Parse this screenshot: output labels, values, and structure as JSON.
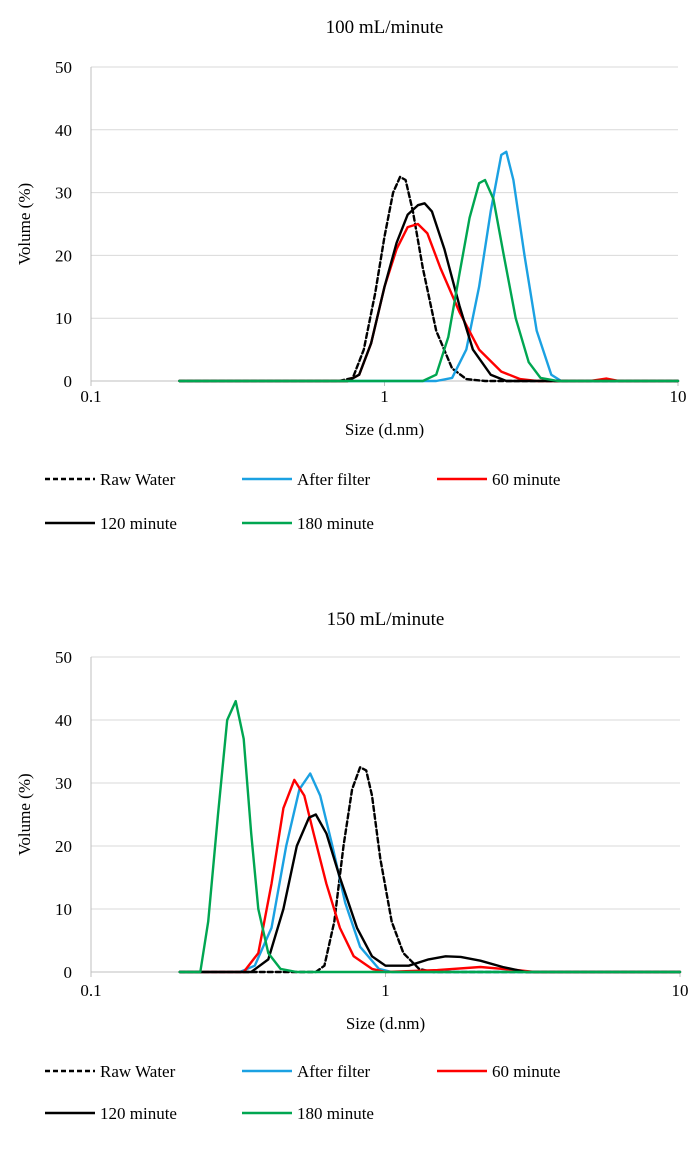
{
  "chart_data": [
    {
      "type": "line",
      "title": "100 mL/minute",
      "xlabel": "Size (d.nm)",
      "ylabel": "Volume (%)",
      "x_scale": "log",
      "xlim": [
        0.1,
        10
      ],
      "ylim": [
        0,
        50
      ],
      "x_ticks": [
        "0.1",
        "1",
        "10"
      ],
      "y_ticks": [
        "0",
        "10",
        "20",
        "30",
        "40",
        "50"
      ],
      "grid": "horizontal",
      "legend_position": "bottom",
      "series": [
        {
          "name": "Raw Water",
          "color": "#000000",
          "dashed": true,
          "x": [
            0.2,
            0.7,
            0.78,
            0.85,
            0.93,
            1.0,
            1.07,
            1.13,
            1.18,
            1.25,
            1.35,
            1.5,
            1.7,
            1.9,
            2.2,
            10
          ],
          "y": [
            0,
            0,
            0.5,
            5,
            14,
            23,
            30,
            32.5,
            32,
            27,
            18,
            8,
            2,
            0.3,
            0,
            0
          ]
        },
        {
          "name": "After filter",
          "color": "#1ba1e2",
          "dashed": false,
          "x": [
            0.2,
            1.5,
            1.7,
            1.9,
            2.1,
            2.3,
            2.5,
            2.6,
            2.75,
            3.0,
            3.3,
            3.7,
            4.0,
            10
          ],
          "y": [
            0,
            0,
            0.5,
            5,
            15,
            27,
            36,
            36.5,
            32,
            20,
            8,
            1,
            0,
            0
          ]
        },
        {
          "name": "60 minute",
          "color": "#ff0000",
          "dashed": false,
          "x": [
            0.2,
            0.75,
            0.82,
            0.9,
            1.0,
            1.1,
            1.2,
            1.3,
            1.4,
            1.55,
            1.8,
            2.1,
            2.5,
            2.9,
            3.3,
            5.0,
            5.7,
            6.3,
            10
          ],
          "y": [
            0,
            0,
            1,
            6,
            15,
            21,
            24.5,
            25,
            23.5,
            18,
            11,
            5,
            1.5,
            0.3,
            0,
            0,
            0.4,
            0,
            0
          ]
        },
        {
          "name": "120 minute",
          "color": "#000000",
          "dashed": false,
          "x": [
            0.2,
            0.75,
            0.82,
            0.9,
            1.0,
            1.1,
            1.2,
            1.3,
            1.37,
            1.45,
            1.6,
            1.8,
            2.0,
            2.3,
            2.6,
            10
          ],
          "y": [
            0,
            0,
            1,
            6,
            15,
            22,
            26.5,
            28,
            28.3,
            27,
            21,
            12,
            5,
            1,
            0,
            0
          ]
        },
        {
          "name": "180 minute",
          "color": "#00a651",
          "dashed": false,
          "x": [
            0.2,
            1.35,
            1.5,
            1.65,
            1.8,
            1.95,
            2.1,
            2.2,
            2.35,
            2.55,
            2.8,
            3.1,
            3.4,
            3.9,
            10
          ],
          "y": [
            0,
            0,
            1,
            7,
            17,
            26,
            31.5,
            32,
            29,
            20,
            10,
            3,
            0.5,
            0,
            0
          ]
        }
      ]
    },
    {
      "type": "line",
      "title": "150 mL/minute",
      "xlabel": "Size (d.nm)",
      "ylabel": "Volume (%)",
      "x_scale": "log",
      "xlim": [
        0.1,
        10
      ],
      "ylim": [
        0,
        50
      ],
      "x_ticks": [
        "0.1",
        "1",
        "10"
      ],
      "y_ticks": [
        "0",
        "10",
        "20",
        "30",
        "40",
        "50"
      ],
      "grid": "horizontal",
      "legend_position": "bottom",
      "series": [
        {
          "name": "Raw Water",
          "color": "#000000",
          "dashed": true,
          "x": [
            0.2,
            0.58,
            0.62,
            0.67,
            0.72,
            0.77,
            0.82,
            0.86,
            0.9,
            0.96,
            1.05,
            1.15,
            1.3,
            1.45,
            10
          ],
          "y": [
            0,
            0,
            1,
            8,
            20,
            29,
            32.5,
            32,
            28,
            18,
            8,
            3,
            0.5,
            0,
            0
          ]
        },
        {
          "name": "After filter",
          "color": "#1ba1e2",
          "dashed": false,
          "x": [
            0.2,
            0.32,
            0.36,
            0.41,
            0.46,
            0.51,
            0.555,
            0.6,
            0.66,
            0.73,
            0.82,
            0.95,
            1.05,
            10
          ],
          "y": [
            0,
            0,
            1,
            7,
            20,
            29,
            31.5,
            28,
            20,
            11,
            4,
            0.5,
            0,
            0
          ]
        },
        {
          "name": "60 minute",
          "color": "#ff0000",
          "dashed": false,
          "x": [
            0.2,
            0.33,
            0.37,
            0.41,
            0.45,
            0.49,
            0.53,
            0.57,
            0.63,
            0.7,
            0.78,
            0.9,
            1.0,
            1.5,
            2.1,
            2.8,
            3.2,
            10
          ],
          "y": [
            0,
            0,
            3,
            14,
            26,
            30.5,
            28,
            22,
            14,
            7,
            2.5,
            0.5,
            0,
            0.3,
            0.8,
            0.3,
            0,
            0
          ]
        },
        {
          "name": "120 minute",
          "color": "#000000",
          "dashed": false,
          "x": [
            0.2,
            0.35,
            0.4,
            0.45,
            0.5,
            0.55,
            0.58,
            0.63,
            0.7,
            0.8,
            0.9,
            1.0,
            1.2,
            1.4,
            1.6,
            1.8,
            2.1,
            2.5,
            3.0,
            10
          ],
          "y": [
            0,
            0,
            2,
            10,
            20,
            24.5,
            25,
            22,
            15,
            7,
            2.5,
            1,
            1,
            2,
            2.5,
            2.4,
            1.8,
            0.8,
            0,
            0
          ]
        },
        {
          "name": "180 minute",
          "color": "#00a651",
          "dashed": false,
          "x": [
            0.2,
            0.235,
            0.25,
            0.27,
            0.29,
            0.31,
            0.33,
            0.35,
            0.37,
            0.4,
            0.44,
            0.5,
            10
          ],
          "y": [
            0,
            0,
            8,
            25,
            40,
            43,
            37,
            22,
            10,
            3,
            0.5,
            0,
            0
          ]
        }
      ]
    }
  ]
}
